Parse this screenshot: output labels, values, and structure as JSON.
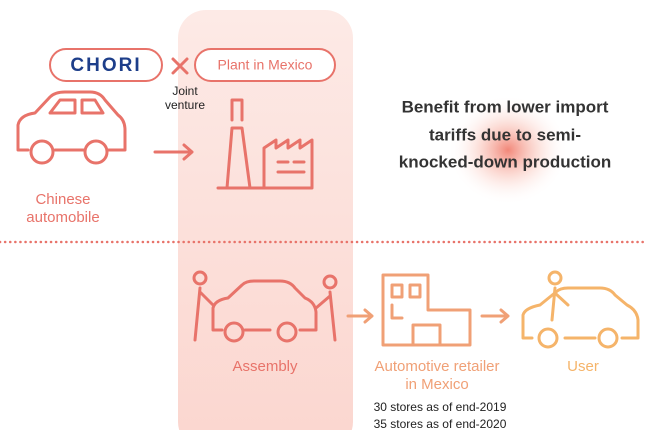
{
  "logo": "CHORI",
  "partner": "Plant in Mexico",
  "joint": [
    "Joint",
    "venture"
  ],
  "source": [
    "Chinese",
    "automobile"
  ],
  "benefit": [
    "Benefit from lower import",
    "tariffs due to semi-",
    "knocked-down production"
  ],
  "assembly": "Assembly",
  "retailer": [
    "Automotive retailer",
    "in Mexico"
  ],
  "user": "User",
  "stores": [
    "30 stores as of end-2019",
    "35 stores as of end-2020"
  ]
}
